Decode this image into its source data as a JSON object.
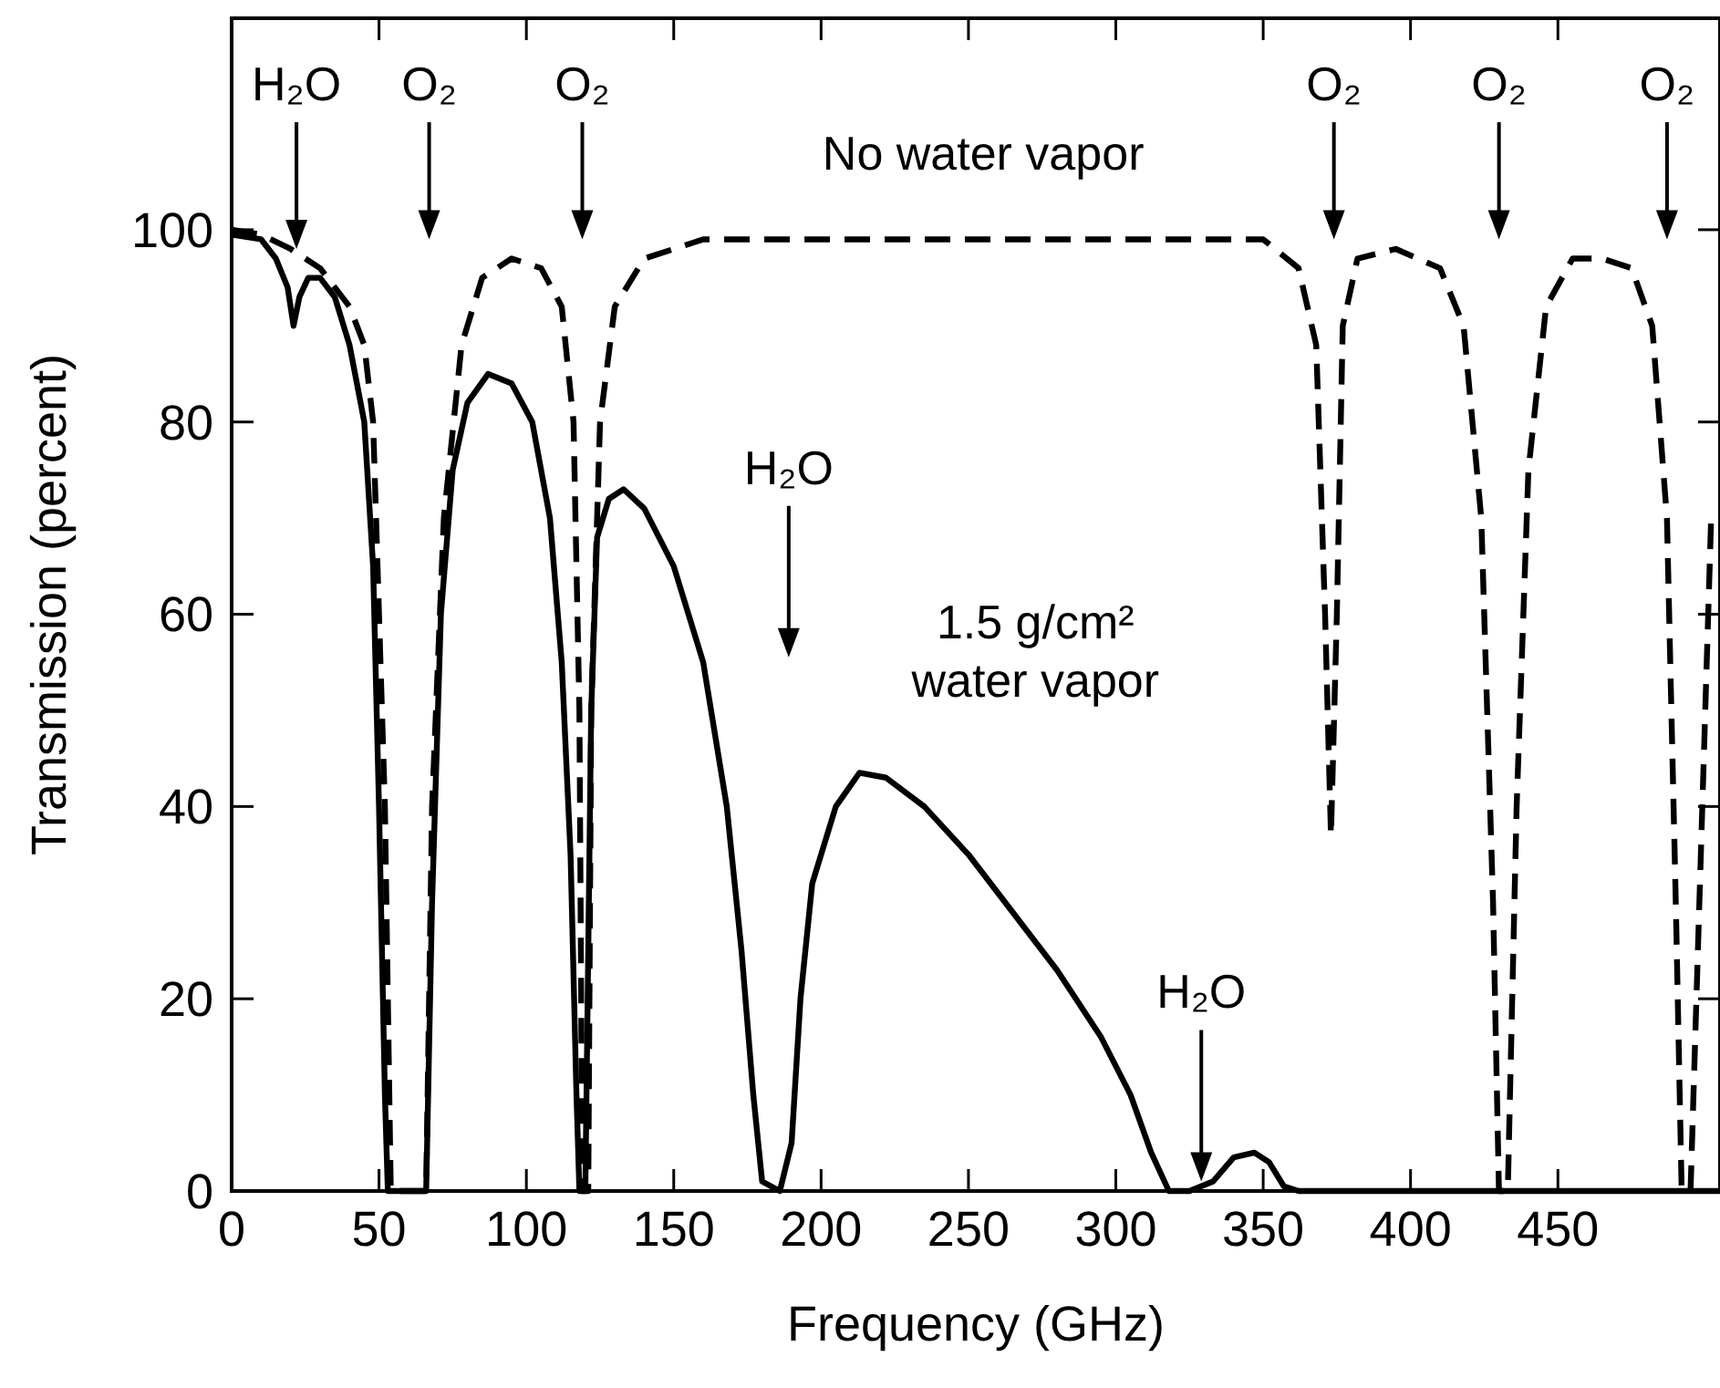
{
  "chart_data": {
    "type": "line",
    "xlabel": "Frequency (GHz)",
    "ylabel": "Transmission (percent)",
    "xlim": [
      0,
      505
    ],
    "ylim": [
      0,
      122
    ],
    "xticks": [
      0,
      50,
      100,
      150,
      200,
      250,
      300,
      350,
      400,
      450
    ],
    "yticks": [
      0,
      20,
      40,
      60,
      80,
      100
    ],
    "grid": false,
    "marker": "none",
    "series": [
      {
        "color": "#000000",
        "line_style": "dashed",
        "x": [
          0,
          10,
          20,
          30,
          40,
          45,
          48,
          52,
          54,
          66,
          68,
          72,
          78,
          85,
          95,
          105,
          112,
          116,
          118,
          119,
          121,
          122,
          125,
          130,
          140,
          160,
          350,
          362,
          368,
          371,
          373,
          375,
          377,
          382,
          395,
          410,
          418,
          424,
          428,
          430,
          433,
          436,
          440,
          446,
          455,
          465,
          475,
          482,
          487,
          490,
          492,
          495,
          498,
          502
        ],
        "values": [
          100,
          99.5,
          98,
          96,
          92,
          88,
          80,
          40,
          0,
          0,
          40,
          70,
          88,
          95,
          97,
          96,
          92,
          80,
          50,
          0,
          0,
          50,
          80,
          92,
          97,
          99,
          99,
          96,
          88,
          60,
          37,
          60,
          90,
          97,
          98,
          96,
          90,
          70,
          30,
          0,
          0,
          40,
          75,
          92,
          97,
          97,
          96,
          90,
          70,
          30,
          0,
          0,
          30,
          70
        ]
      },
      {
        "color": "#000000",
        "line_style": "solid",
        "x": [
          0,
          10,
          15,
          19,
          21,
          23,
          26,
          30,
          35,
          40,
          45,
          48,
          50,
          52,
          53,
          66,
          68,
          71,
          75,
          80,
          87,
          95,
          102,
          108,
          112,
          115,
          117,
          118,
          120,
          122,
          124,
          128,
          133,
          140,
          150,
          160,
          168,
          173,
          177,
          180,
          186,
          190,
          193,
          197,
          205,
          213,
          222,
          235,
          250,
          265,
          280,
          295,
          305,
          312,
          318,
          325,
          333,
          340,
          347,
          352,
          357,
          362,
          400,
          505
        ],
        "values": [
          99.5,
          99,
          97,
          94,
          90,
          93,
          95,
          95,
          93,
          88,
          80,
          65,
          40,
          10,
          0,
          0,
          30,
          60,
          75,
          82,
          85,
          84,
          80,
          70,
          55,
          35,
          10,
          0,
          0,
          50,
          68,
          72,
          73,
          71,
          65,
          55,
          40,
          25,
          10,
          1,
          0,
          5,
          20,
          32,
          40,
          43.5,
          43,
          40,
          35,
          29,
          23,
          16,
          10,
          4,
          0,
          0,
          1,
          3.5,
          4,
          3,
          0.5,
          0,
          0,
          0
        ]
      }
    ],
    "annotations": [
      {
        "text": "H₂O",
        "x": 22,
        "y": 98
      },
      "O₂",
      "O₂",
      "H₂O",
      "H₂O",
      "O₂",
      "O₂",
      "O₂",
      "No water vapor",
      "1.5 g/cm²\nwater vapor"
    ]
  }
}
